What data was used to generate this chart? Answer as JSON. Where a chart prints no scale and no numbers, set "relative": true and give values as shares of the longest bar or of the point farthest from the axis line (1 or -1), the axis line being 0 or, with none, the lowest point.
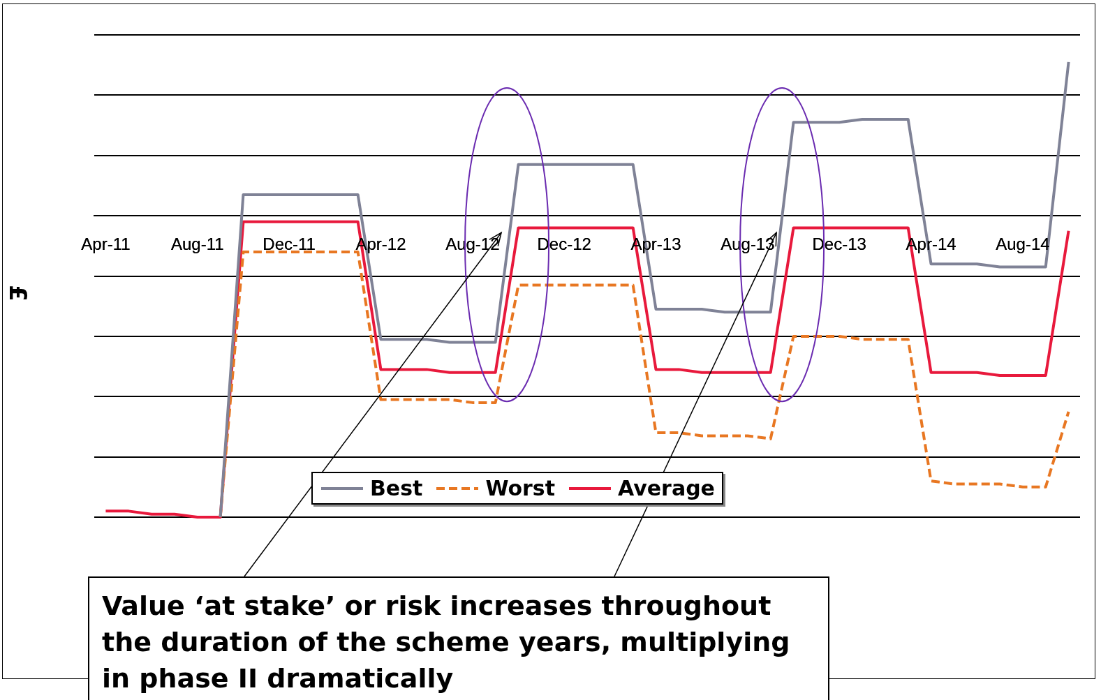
{
  "chart_data": {
    "type": "line",
    "relative": true,
    "ylabel": "£",
    "categories": [
      "Apr-11",
      null,
      null,
      null,
      "Aug-11",
      null,
      null,
      null,
      "Dec-11",
      null,
      null,
      null,
      "Apr-12",
      null,
      null,
      null,
      "Aug-12",
      null,
      null,
      null,
      "Dec-12",
      null,
      null,
      null,
      "Apr-13",
      null,
      null,
      null,
      "Aug-13",
      null,
      null,
      null,
      "Dec-13",
      null,
      null,
      null,
      "Apr-14",
      null,
      null,
      null,
      "Aug-14",
      null,
      null
    ],
    "series": [
      {
        "name": "Best",
        "color": "#7f8296",
        "line_style": "solid",
        "values": [
          null,
          null,
          null,
          null,
          null,
          -1,
          0.07,
          0.07,
          0.07,
          0.07,
          0.07,
          0.07,
          -0.41,
          -0.41,
          -0.41,
          -0.42,
          -0.42,
          -0.42,
          0.17,
          0.17,
          0.17,
          0.17,
          0.17,
          0.17,
          -0.31,
          -0.31,
          -0.31,
          -0.32,
          -0.32,
          -0.32,
          0.31,
          0.31,
          0.31,
          0.32,
          0.32,
          0.32,
          -0.16,
          -0.16,
          -0.16,
          -0.17,
          -0.17,
          -0.17,
          0.51
        ]
      },
      {
        "name": "Worst",
        "color": "#e87722",
        "line_style": "dashed",
        "values": [
          null,
          null,
          null,
          null,
          null,
          -1,
          -0.12,
          -0.12,
          -0.12,
          -0.12,
          -0.12,
          -0.12,
          -0.61,
          -0.61,
          -0.61,
          -0.61,
          -0.62,
          -0.62,
          -0.23,
          -0.23,
          -0.23,
          -0.23,
          -0.23,
          -0.23,
          -0.72,
          -0.72,
          -0.73,
          -0.73,
          -0.73,
          -0.74,
          -0.4,
          -0.4,
          -0.4,
          -0.41,
          -0.41,
          -0.41,
          -0.88,
          -0.89,
          -0.89,
          -0.89,
          -0.9,
          -0.9,
          -0.65
        ]
      },
      {
        "name": "Average",
        "color": "#e8193c",
        "line_style": "solid",
        "values": [
          -0.98,
          -0.98,
          -0.99,
          -0.99,
          -1,
          -1,
          -0.02,
          -0.02,
          -0.02,
          -0.02,
          -0.02,
          -0.02,
          -0.51,
          -0.51,
          -0.51,
          -0.52,
          -0.52,
          -0.52,
          -0.04,
          -0.04,
          -0.04,
          -0.04,
          -0.04,
          -0.04,
          -0.51,
          -0.51,
          -0.52,
          -0.52,
          -0.52,
          -0.52,
          -0.04,
          -0.04,
          -0.04,
          -0.04,
          -0.04,
          -0.04,
          -0.52,
          -0.52,
          -0.52,
          -0.53,
          -0.53,
          -0.53,
          -0.05
        ]
      }
    ],
    "grid": "y",
    "legend": "bottom",
    "marker": "none",
    "tick_labels": "x",
    "annotations": [
      "Value ‘at stake’ or risk increases throughout the duration of the scheme years, multiplying in phase II dramatically"
    ]
  }
}
